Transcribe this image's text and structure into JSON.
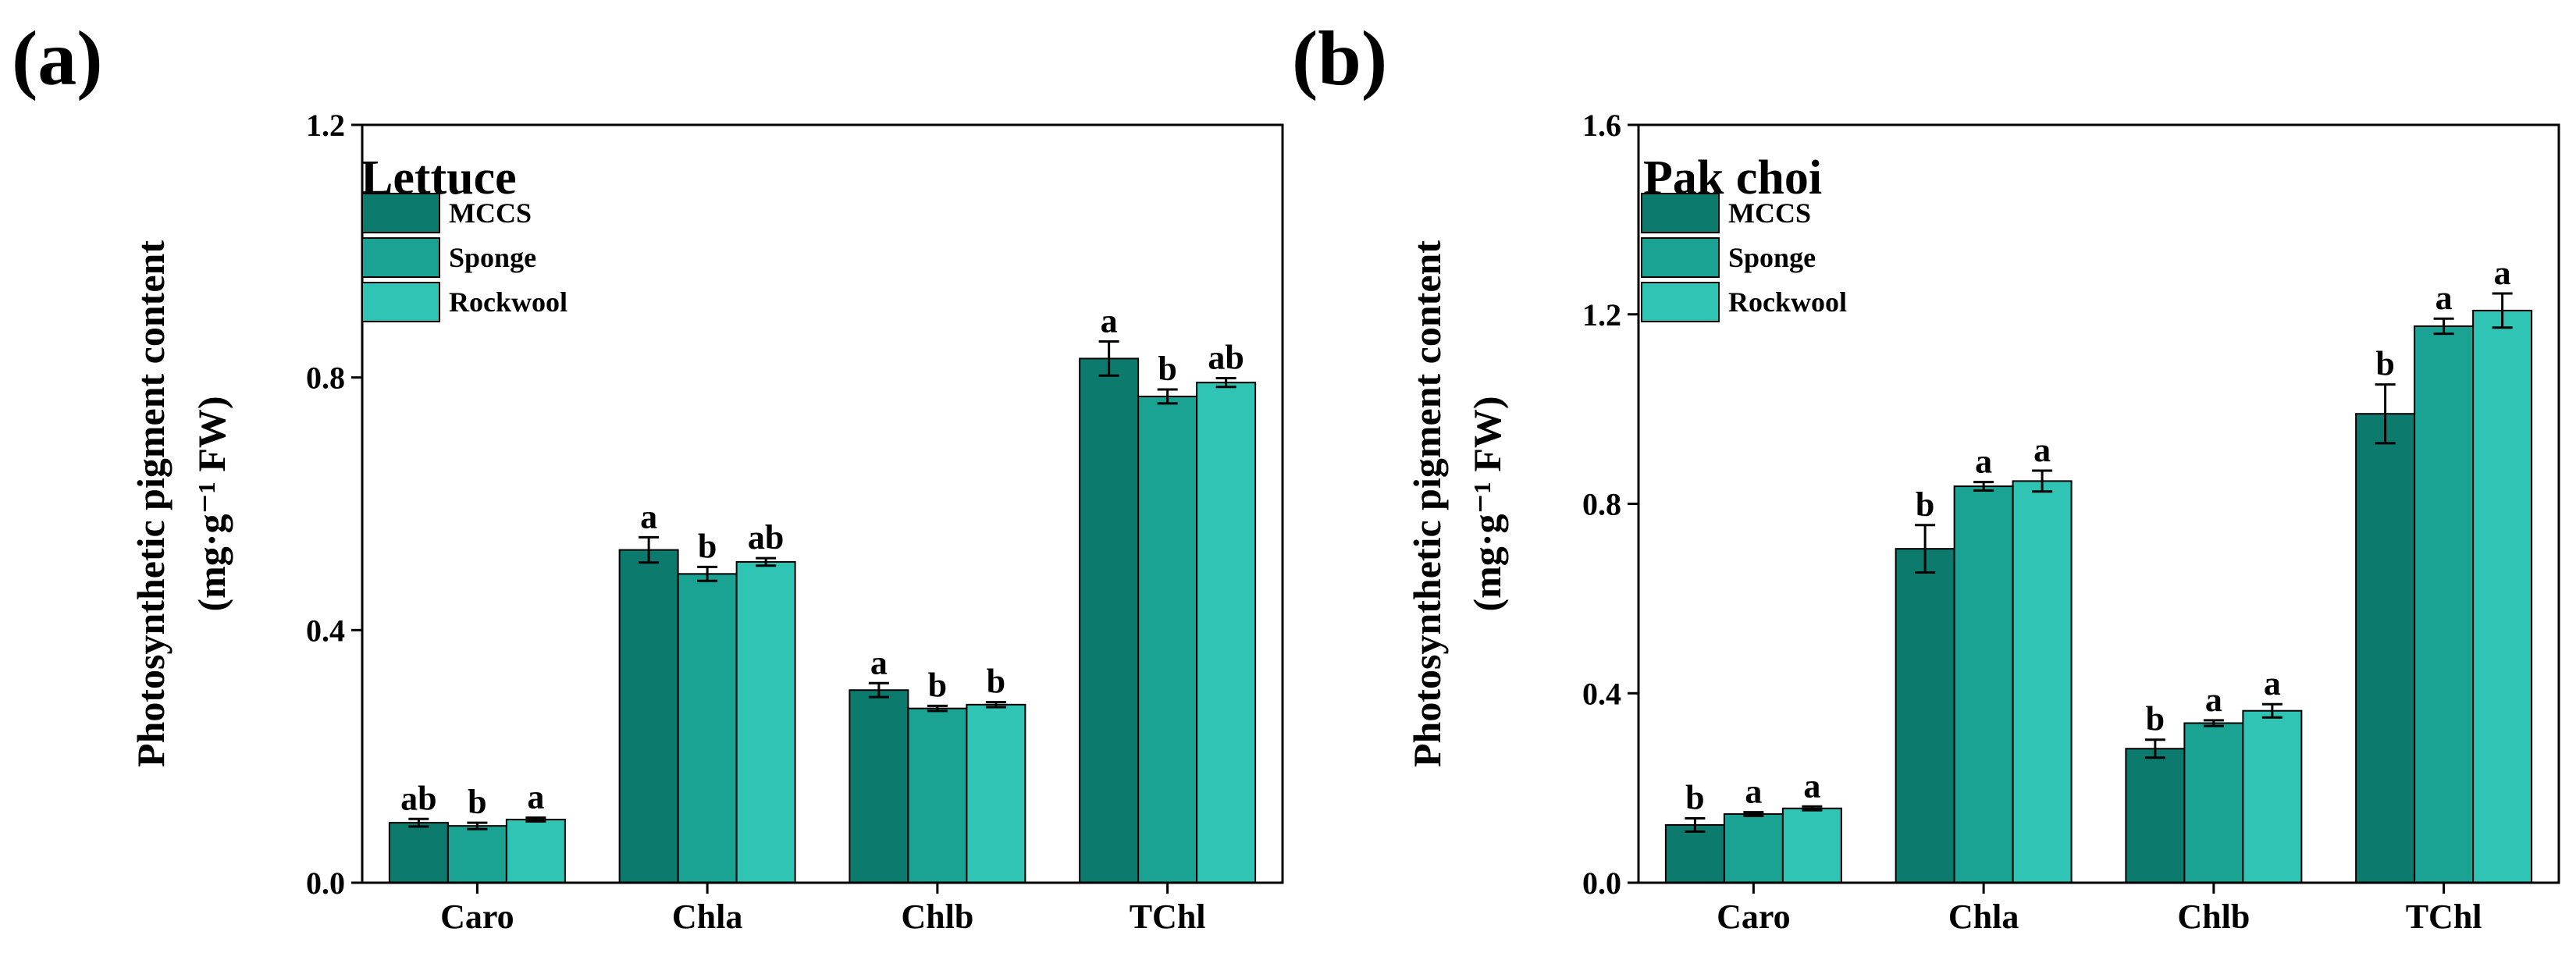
{
  "chart_data": [
    {
      "type": "bar",
      "panel_label": "(a)",
      "title": "Lettuce",
      "ylabel_line1": "Photosynthetic pigment content",
      "ylabel_line2": "(mg·g⁻¹ FW)",
      "xlabel": "",
      "ylim": [
        0,
        1.2
      ],
      "yticks": [
        "0.0",
        "0.4",
        "0.8",
        "1.2"
      ],
      "ytick_values": [
        0,
        0.4,
        0.8,
        1.2
      ],
      "categories": [
        "Caro",
        "Chla",
        "Chlb",
        "TChl"
      ],
      "legend_position": "top-left",
      "series": [
        {
          "name": "MCCS",
          "color": "#0d7a6e",
          "values": [
            0.095,
            0.527,
            0.305,
            0.83
          ],
          "errors": [
            0.006,
            0.02,
            0.011,
            0.027
          ],
          "letters": [
            "ab",
            "a",
            "a",
            "a"
          ]
        },
        {
          "name": "Sponge",
          "color": "#1aa393",
          "values": [
            0.09,
            0.489,
            0.276,
            0.77
          ],
          "errors": [
            0.005,
            0.011,
            0.004,
            0.011
          ],
          "letters": [
            "b",
            "b",
            "b",
            "b"
          ]
        },
        {
          "name": "Rockwool",
          "color": "#2fc4b4",
          "values": [
            0.1,
            0.508,
            0.282,
            0.792
          ],
          "errors": [
            0.003,
            0.006,
            0.004,
            0.007
          ],
          "letters": [
            "a",
            "ab",
            "b",
            "ab"
          ]
        }
      ]
    },
    {
      "type": "bar",
      "panel_label": "(b)",
      "title": "Pak choi",
      "ylabel_line1": "Photosynthetic pigment content",
      "ylabel_line2": "(mg·g⁻¹ FW)",
      "xlabel": "",
      "ylim": [
        0,
        1.6
      ],
      "yticks": [
        "0.0",
        "0.4",
        "0.8",
        "1.2",
        "1.6"
      ],
      "ytick_values": [
        0,
        0.4,
        0.8,
        1.2,
        1.6
      ],
      "categories": [
        "Caro",
        "Chla",
        "Chlb",
        "TChl"
      ],
      "legend_position": "top-left",
      "series": [
        {
          "name": "MCCS",
          "color": "#0d7a6e",
          "values": [
            0.122,
            0.705,
            0.283,
            0.99
          ],
          "errors": [
            0.014,
            0.05,
            0.019,
            0.062
          ],
          "letters": [
            "b",
            "b",
            "b",
            "b"
          ]
        },
        {
          "name": "Sponge",
          "color": "#1aa393",
          "values": [
            0.145,
            0.837,
            0.337,
            1.175
          ],
          "errors": [
            0.004,
            0.009,
            0.006,
            0.016
          ],
          "letters": [
            "a",
            "a",
            "a",
            "a"
          ]
        },
        {
          "name": "Rockwool",
          "color": "#2fc4b4",
          "values": [
            0.157,
            0.848,
            0.363,
            1.208
          ],
          "errors": [
            0.004,
            0.022,
            0.014,
            0.036
          ],
          "letters": [
            "a",
            "a",
            "a",
            "a"
          ]
        }
      ]
    }
  ]
}
